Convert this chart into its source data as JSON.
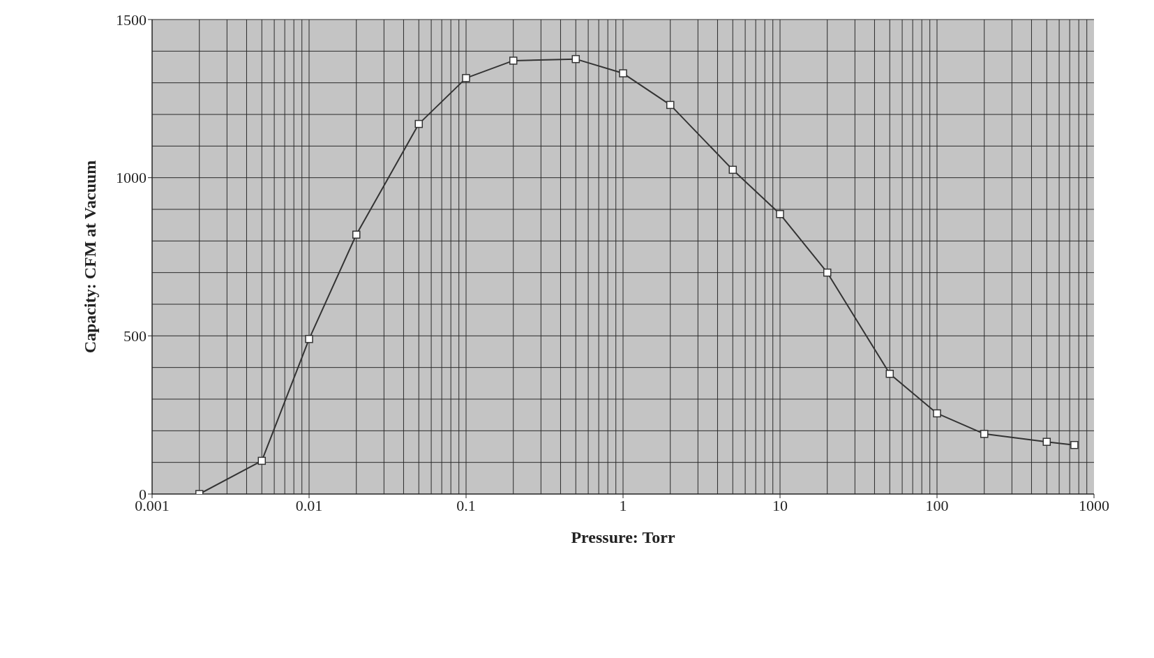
{
  "chart_data": {
    "type": "line",
    "xlabel": "Pressure: Torr",
    "ylabel": "Capacity: CFM at Vacuum",
    "x": [
      0.002,
      0.005,
      0.01,
      0.02,
      0.05,
      0.1,
      0.2,
      0.5,
      1,
      2,
      5,
      10,
      20,
      50,
      100,
      200,
      500,
      750
    ],
    "series": [
      {
        "color": "#333333",
        "values": [
          0,
          105,
          490,
          820,
          1170,
          1315,
          1370,
          1375,
          1330,
          1230,
          1025,
          885,
          700,
          380,
          255,
          190,
          165,
          155
        ]
      }
    ],
    "log": "x",
    "xlim": [
      0.001,
      1000
    ],
    "xticks": [
      0.001,
      0.01,
      0.1,
      1,
      10,
      100,
      1000
    ],
    "ylim": [
      0,
      1500
    ],
    "yticks": [
      0,
      500,
      1000,
      1500
    ],
    "grid": true,
    "marker": "square",
    "line_style": "solid"
  }
}
